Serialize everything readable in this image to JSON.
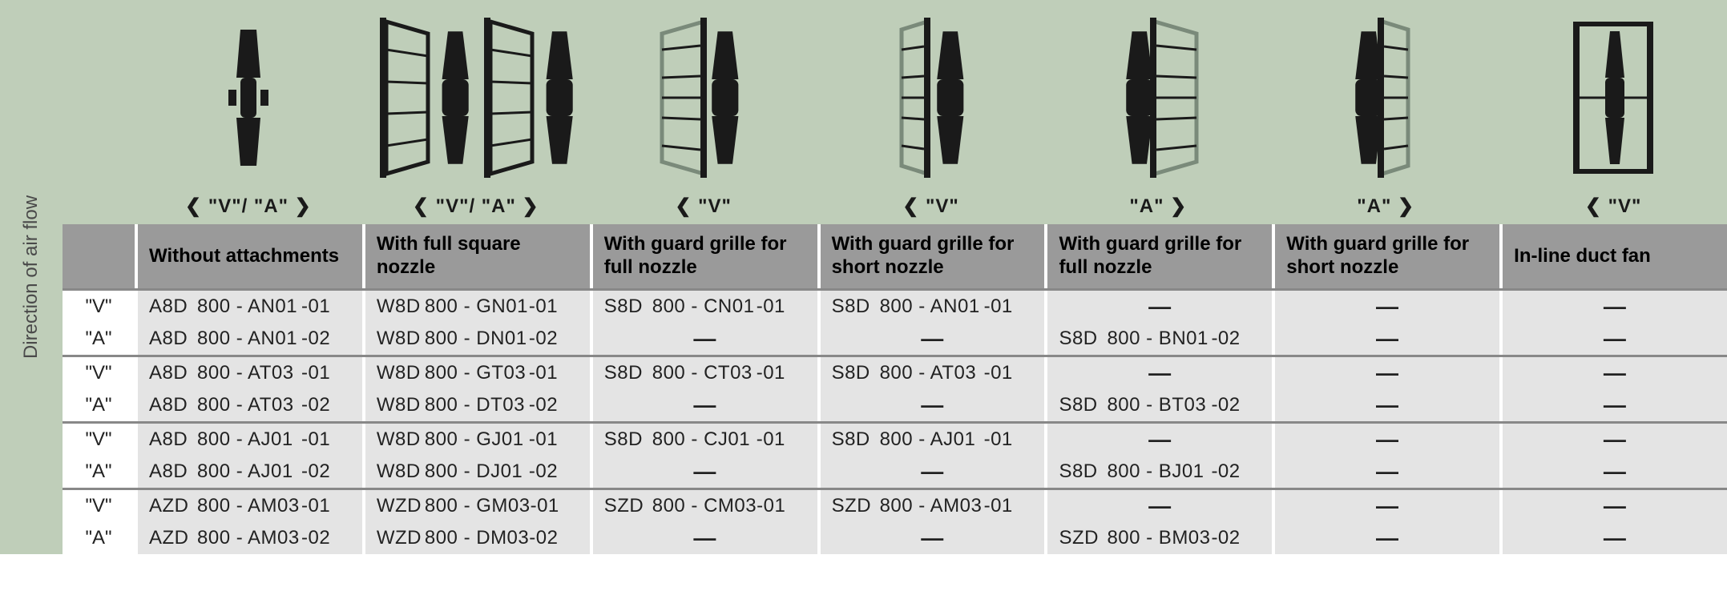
{
  "side_label": "Direction of air flow",
  "arrow_labels": [
    "❮ \"V\"/ \"A\" ❯",
    "❮ \"V\"/ \"A\" ❯",
    "❮ \"V\"",
    "❮ \"V\"",
    "\"A\" ❯",
    "\"A\" ❯",
    "❮ \"V\""
  ],
  "headers": [
    "Without attachments",
    "With full square nozzle",
    "With guard grille for full nozzle",
    "With guard grille for short nozzle",
    "With guard grille for full nozzle",
    "With guard grille for short nozzle",
    "In-line duct fan"
  ],
  "groups": [
    {
      "rows": [
        {
          "label": "\"V\"",
          "cells": [
            [
              "A8D",
              "800 - AN01",
              "-01"
            ],
            [
              "W8D",
              "800 - GN01",
              "-01"
            ],
            [
              "S8D",
              "800 - CN01",
              "-01"
            ],
            [
              "S8D",
              "800 - AN01",
              "-01"
            ],
            "—",
            "—",
            "—"
          ]
        },
        {
          "label": "\"A\"",
          "cells": [
            [
              "A8D",
              "800 - AN01",
              "-02"
            ],
            [
              "W8D",
              "800 - DN01",
              "-02"
            ],
            "—",
            "—",
            [
              "S8D",
              "800 - BN01",
              "-02"
            ],
            "—",
            "—"
          ]
        }
      ]
    },
    {
      "rows": [
        {
          "label": "\"V\"",
          "cells": [
            [
              "A8D",
              "800 - AT03",
              "-01"
            ],
            [
              "W8D",
              "800 - GT03",
              "-01"
            ],
            [
              "S8D",
              "800 - CT03",
              "-01"
            ],
            [
              "S8D",
              "800 - AT03",
              "-01"
            ],
            "—",
            "—",
            "—"
          ]
        },
        {
          "label": "\"A\"",
          "cells": [
            [
              "A8D",
              "800 - AT03",
              "-02"
            ],
            [
              "W8D",
              "800 - DT03",
              "-02"
            ],
            "—",
            "—",
            [
              "S8D",
              "800 - BT03",
              "-02"
            ],
            "—",
            "—"
          ]
        }
      ]
    },
    {
      "rows": [
        {
          "label": "\"V\"",
          "cells": [
            [
              "A8D",
              "800 - AJ01",
              "-01"
            ],
            [
              "W8D",
              "800 - GJ01",
              "-01"
            ],
            [
              "S8D",
              "800 - CJ01",
              "-01"
            ],
            [
              "S8D",
              "800 - AJ01",
              "-01"
            ],
            "—",
            "—",
            "—"
          ]
        },
        {
          "label": "\"A\"",
          "cells": [
            [
              "A8D",
              "800 - AJ01",
              "-02"
            ],
            [
              "W8D",
              "800 - DJ01",
              "-02"
            ],
            "—",
            "—",
            [
              "S8D",
              "800 - BJ01",
              "-02"
            ],
            "—",
            "—"
          ]
        }
      ]
    },
    {
      "rows": [
        {
          "label": "\"V\"",
          "cells": [
            [
              "AZD",
              "800 - AM03",
              "-01"
            ],
            [
              "WZD",
              "800 - GM03",
              "-01"
            ],
            [
              "SZD",
              "800 - CM03",
              "-01"
            ],
            [
              "SZD",
              "800 - AM03",
              "-01"
            ],
            "—",
            "—",
            "—"
          ]
        },
        {
          "label": "\"A\"",
          "cells": [
            [
              "AZD",
              "800 - AM03",
              "-02"
            ],
            [
              "WZD",
              "800 - DM03",
              "-02"
            ],
            "—",
            "—",
            [
              "SZD",
              "800 - BM03",
              "-02"
            ],
            "—",
            "—"
          ]
        }
      ]
    }
  ],
  "colors": {
    "header_bg": "#bfceb9",
    "column_header_bg": "#9a9a9a",
    "cell_bg": "#e4e4e4",
    "divider": "#ffffff",
    "icon_fill": "#1a1a1a"
  }
}
